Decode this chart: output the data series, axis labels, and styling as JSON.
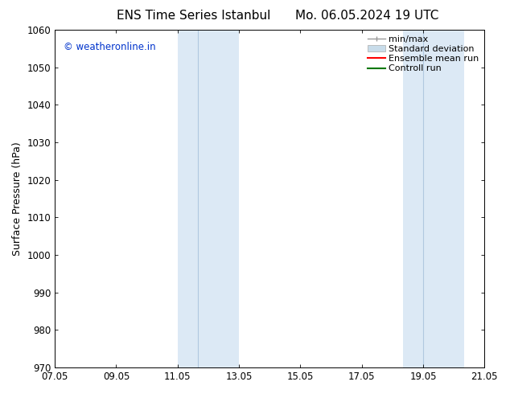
{
  "title_left": "ENS Time Series Istanbul",
  "title_right": "Mo. 06.05.2024 19 UTC",
  "ylabel": "Surface Pressure (hPa)",
  "ylim": [
    970,
    1060
  ],
  "yticks": [
    970,
    980,
    990,
    1000,
    1010,
    1020,
    1030,
    1040,
    1050,
    1060
  ],
  "xtick_labels": [
    "07.05",
    "09.05",
    "11.05",
    "13.05",
    "15.05",
    "17.05",
    "19.05",
    "21.05"
  ],
  "xtick_positions": [
    0,
    2,
    4,
    6,
    8,
    10,
    12,
    14
  ],
  "xlim": [
    0,
    14
  ],
  "shaded_regions": [
    {
      "x_start": 4.0,
      "x_end": 4.667,
      "color": "#dce9f5"
    },
    {
      "x_start": 4.667,
      "x_end": 6.0,
      "color": "#dce9f5"
    },
    {
      "x_start": 11.333,
      "x_end": 12.0,
      "color": "#dce9f5"
    },
    {
      "x_start": 12.0,
      "x_end": 13.333,
      "color": "#dce9f5"
    }
  ],
  "shaded_bands": [
    {
      "x_start": 4.0,
      "x_end": 6.0,
      "color": "#dce9f5"
    },
    {
      "x_start": 11.333,
      "x_end": 13.333,
      "color": "#dce9f5"
    }
  ],
  "band_dividers": [
    4.667,
    12.0
  ],
  "divider_color": "#b0c8e0",
  "watermark_text": "© weatheronline.in",
  "watermark_color": "#0033cc",
  "background_color": "#ffffff",
  "plot_bg_color": "#ffffff",
  "legend_entries": [
    {
      "label": "min/max",
      "color": "#999999",
      "linewidth": 1.0,
      "linestyle": "-",
      "type": "minmax"
    },
    {
      "label": "Standard deviation",
      "color": "#c8dcea",
      "linewidth": 7,
      "linestyle": "-",
      "type": "patch"
    },
    {
      "label": "Ensemble mean run",
      "color": "#ff0000",
      "linewidth": 1.5,
      "linestyle": "-",
      "type": "line"
    },
    {
      "label": "Controll run",
      "color": "#007700",
      "linewidth": 1.5,
      "linestyle": "-",
      "type": "line"
    }
  ],
  "title_fontsize": 11,
  "axis_label_fontsize": 9,
  "tick_fontsize": 8.5,
  "legend_fontsize": 8,
  "watermark_fontsize": 8.5
}
